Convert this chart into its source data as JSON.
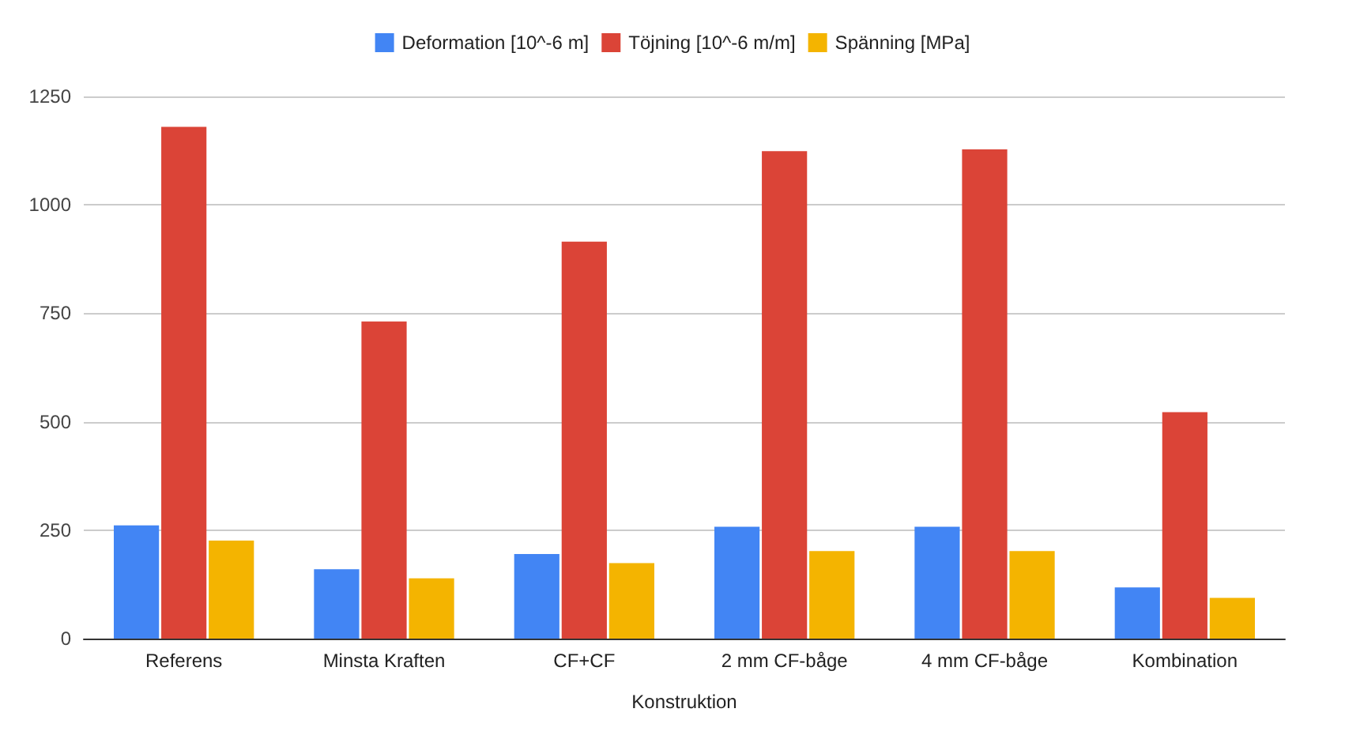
{
  "chart_data": {
    "type": "bar",
    "xlabel": "Konstruktion",
    "categories": [
      "Referens",
      "Minsta Kraften",
      "CF+CF",
      "2 mm CF-båge",
      "4 mm CF-båge",
      "Kombination"
    ],
    "series": [
      {
        "name": "Deformation [10^-6 m]",
        "color": "#4285f4",
        "values": [
          261,
          160,
          195,
          258,
          258,
          118
        ]
      },
      {
        "name": "Töjning [10^-6 m/m]",
        "color": "#db4437",
        "values": [
          1180,
          731,
          915,
          1124,
          1128,
          522
        ]
      },
      {
        "name": "Spänning [MPa]",
        "color": "#f4b400",
        "values": [
          226,
          139,
          174,
          202,
          202,
          94
        ]
      }
    ],
    "ylim": [
      0,
      1250
    ],
    "yticks": [
      0,
      250,
      500,
      750,
      1000,
      1250
    ],
    "grid": "y",
    "legend": "top"
  }
}
